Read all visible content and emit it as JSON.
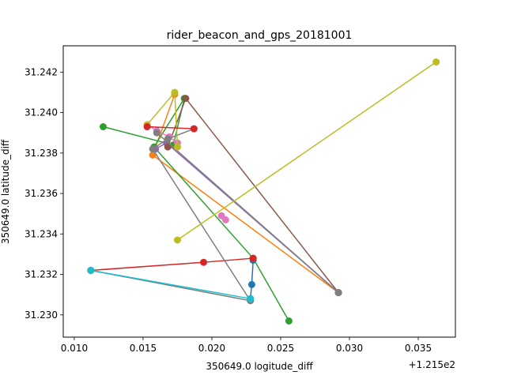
{
  "chart_data": {
    "type": "line",
    "title": "rider_beacon_and_gps_20181001",
    "xlabel": "350649.0 logitude_diff",
    "ylabel": "350649.0 latitude_diff",
    "x_offset_label": "+1.215e2",
    "xlim": [
      0.0092,
      0.0377
    ],
    "ylim": [
      31.2289,
      31.2433
    ],
    "x_ticks": [
      0.01,
      0.015,
      0.02,
      0.025,
      0.03,
      0.035
    ],
    "x_tick_labels": [
      "0.010",
      "0.015",
      "0.020",
      "0.025",
      "0.030",
      "0.035"
    ],
    "y_ticks": [
      31.23,
      31.232,
      31.234,
      31.236,
      31.238,
      31.24,
      31.242
    ],
    "y_tick_labels": [
      "31.230",
      "31.232",
      "31.234",
      "31.236",
      "31.238",
      "31.240",
      "31.242"
    ],
    "grid": false,
    "series": [
      {
        "color": "#1f77b4",
        "points": [
          [
            0.023,
            31.2327
          ],
          [
            0.0229,
            31.2315
          ],
          [
            0.0228,
            31.2308
          ]
        ]
      },
      {
        "color": "#ff7f0e",
        "points": [
          [
            0.0173,
            31.2409
          ],
          [
            0.0157,
            31.2379
          ],
          [
            0.0292,
            31.2311
          ]
        ]
      },
      {
        "color": "#2ca02c",
        "points": [
          [
            0.0121,
            31.2393
          ],
          [
            0.0172,
            31.2384
          ],
          [
            0.018,
            31.2407
          ],
          [
            0.0158,
            31.2383
          ],
          [
            0.023,
            31.2328
          ],
          [
            0.0256,
            31.2297
          ]
        ]
      },
      {
        "color": "#d62728",
        "points": [
          [
            0.0112,
            31.2322
          ],
          [
            0.0194,
            31.2326
          ],
          [
            0.023,
            31.2328
          ]
        ]
      },
      {
        "color": "#9467bd",
        "points": [
          [
            0.0159,
            31.2382
          ],
          [
            0.0167,
            31.2385
          ],
          [
            0.0292,
            31.2311
          ]
        ]
      },
      {
        "color": "#8c564b",
        "points": [
          [
            0.0168,
            31.2383
          ],
          [
            0.0181,
            31.2407
          ],
          [
            0.0292,
            31.2311
          ]
        ]
      },
      {
        "color": "#e377c2",
        "points": [
          [
            0.0153,
            31.2394
          ],
          [
            0.016,
            31.2391
          ],
          [
            0.0169,
            31.2388
          ],
          [
            0.0175,
            31.2385
          ]
        ]
      },
      {
        "color": "#e377c2",
        "points": [
          [
            0.0207,
            31.2349
          ],
          [
            0.021,
            31.2347
          ]
        ]
      },
      {
        "color": "#7f7f7f",
        "points": [
          [
            0.0187,
            31.2392
          ],
          [
            0.0168,
            31.2387
          ],
          [
            0.0157,
            31.2382
          ],
          [
            0.0228,
            31.2307
          ],
          [
            0.0112,
            31.2322
          ]
        ]
      },
      {
        "color": "#7f7f7f",
        "points": [
          [
            0.016,
            31.239
          ],
          [
            0.0292,
            31.2311
          ]
        ]
      },
      {
        "color": "#bcbd22",
        "points": [
          [
            0.0175,
            31.2337
          ],
          [
            0.0363,
            31.2425
          ]
        ]
      },
      {
        "color": "#bcbd22",
        "points": [
          [
            0.0153,
            31.2394
          ],
          [
            0.0173,
            31.241
          ],
          [
            0.0175,
            31.2383
          ]
        ]
      },
      {
        "color": "#17becf",
        "points": [
          [
            0.0112,
            31.2322
          ],
          [
            0.0228,
            31.2308
          ]
        ]
      },
      {
        "color": "#d62728",
        "points": [
          [
            0.0153,
            31.2393
          ],
          [
            0.0187,
            31.2392
          ]
        ]
      }
    ]
  }
}
